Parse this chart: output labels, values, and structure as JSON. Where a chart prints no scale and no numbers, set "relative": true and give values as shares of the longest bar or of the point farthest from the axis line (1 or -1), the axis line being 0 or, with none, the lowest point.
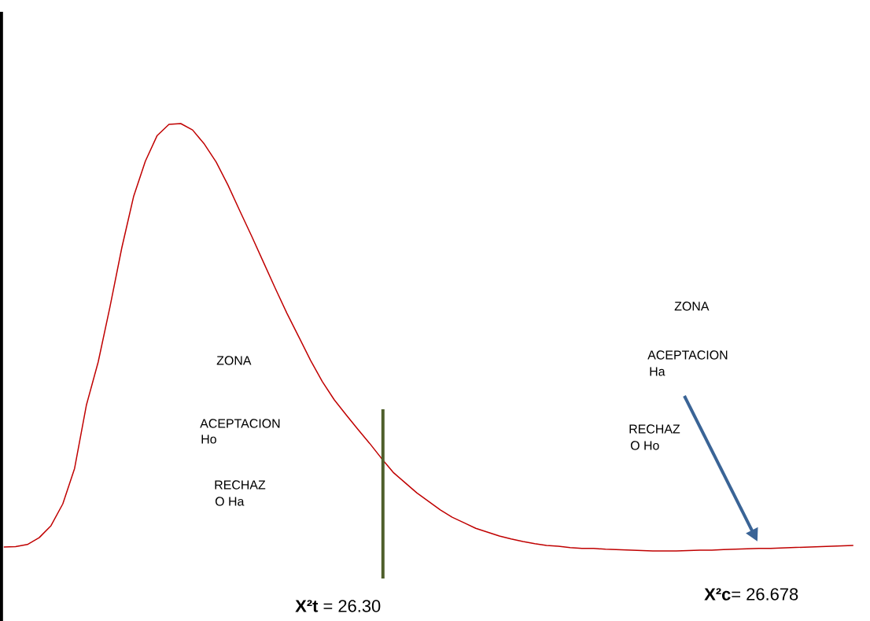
{
  "chart_data": {
    "type": "line",
    "relative": true,
    "categories": [
      null,
      null,
      null,
      null,
      null,
      null,
      null,
      null,
      null,
      null,
      null,
      null,
      null,
      null,
      null,
      null,
      null,
      null,
      null,
      null,
      null,
      null,
      null,
      null,
      null,
      null,
      null,
      null,
      null,
      null,
      null,
      null,
      null,
      null,
      null,
      null,
      null,
      null,
      null,
      null,
      null,
      null,
      null,
      null,
      null,
      null,
      null,
      null,
      null,
      null,
      null,
      null,
      null,
      null,
      null,
      null,
      null,
      null,
      null,
      null,
      null,
      null,
      null,
      null,
      null,
      null,
      null,
      null,
      null,
      null,
      null,
      null,
      null
    ],
    "series": [
      {
        "color": "#c00000",
        "values": [
          0.009,
          0.01,
          0.015,
          0.031,
          0.059,
          0.11,
          0.193,
          0.341,
          0.442,
          0.571,
          0.709,
          0.829,
          0.912,
          0.972,
          0.998,
          1,
          0.985,
          0.952,
          0.91,
          0.856,
          0.796,
          0.737,
          0.676,
          0.615,
          0.556,
          0.501,
          0.446,
          0.396,
          0.354,
          0.319,
          0.285,
          0.252,
          0.217,
          0.184,
          0.16,
          0.136,
          0.116,
          0.096,
          0.079,
          0.066,
          0.053,
          0.044,
          0.035,
          0.028,
          0.022,
          0.017,
          0.013,
          0.011,
          0.008,
          0.006,
          0.006,
          0.004,
          0.003,
          0.002,
          0.001,
          0,
          0,
          0,
          0.001,
          0.002,
          0.002,
          0.003,
          0.004,
          0.005,
          0.006,
          0.006,
          0.007,
          0.008,
          0.009,
          0.01,
          0.011,
          0.012,
          0.013
        ]
      }
    ],
    "annotations": [
      "ZONA",
      "ACEPTACION",
      "Ho",
      "RECHAZ",
      "O Ha",
      "ZONA",
      "ACEPTACION",
      "Ha",
      "RECHAZ",
      "O Ho",
      "**X²c**= 26.678",
      "**X²t** = 26.30"
    ]
  }
}
